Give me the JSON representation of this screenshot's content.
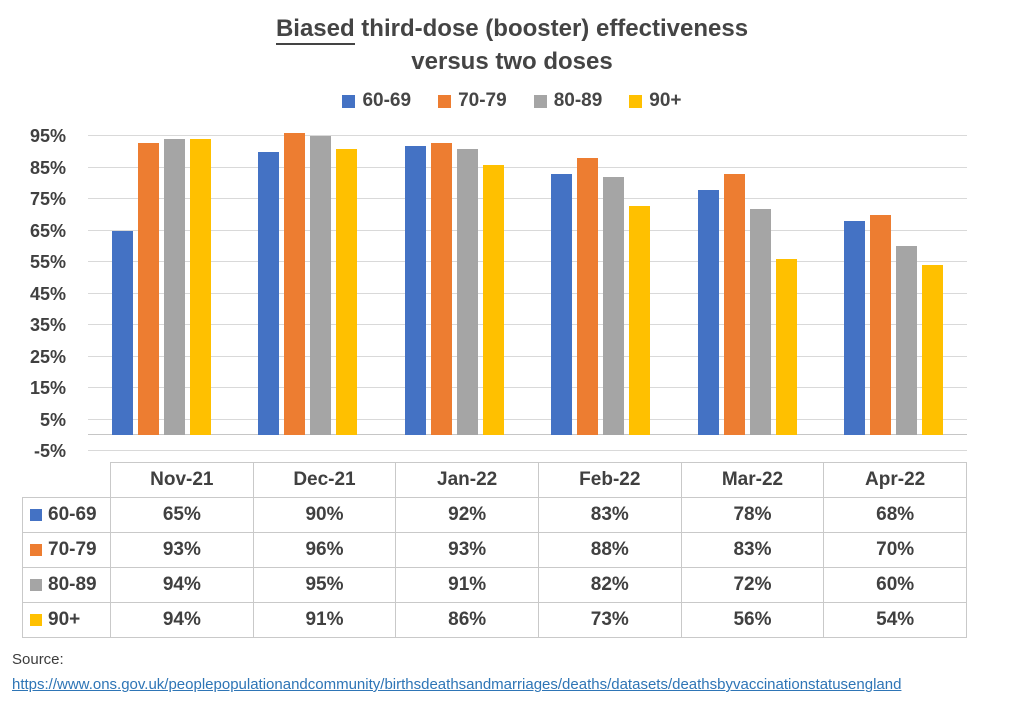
{
  "title": {
    "emphasized": "Biased",
    "line1_rest": " third-dose (booster) effectiveness",
    "line2": "versus two doses"
  },
  "colors": {
    "blue": "#4472C4",
    "orange": "#ED7D31",
    "gray": "#A5A5A5",
    "yellow": "#FFC000",
    "gridline": "#D9D9D9",
    "text": "#404040",
    "link": "#2E75B6"
  },
  "chart_data": {
    "type": "bar",
    "title": "Biased third-dose (booster) effectiveness versus two doses",
    "categories": [
      "Nov-21",
      "Dec-21",
      "Jan-22",
      "Feb-22",
      "Mar-22",
      "Apr-22"
    ],
    "series": [
      {
        "name": "60-69",
        "color": "#4472C4",
        "values": [
          65,
          90,
          92,
          83,
          78,
          68
        ]
      },
      {
        "name": "70-79",
        "color": "#ED7D31",
        "values": [
          93,
          96,
          93,
          88,
          83,
          70
        ]
      },
      {
        "name": "80-89",
        "color": "#A5A5A5",
        "values": [
          94,
          95,
          91,
          82,
          72,
          60
        ]
      },
      {
        "name": "90+",
        "color": "#FFC000",
        "values": [
          94,
          91,
          86,
          73,
          56,
          54
        ]
      }
    ],
    "yticks": [
      95,
      85,
      75,
      65,
      55,
      45,
      35,
      25,
      15,
      5,
      -5
    ],
    "ytick_labels": [
      "95%",
      "85%",
      "75%",
      "65%",
      "55%",
      "45%",
      "35%",
      "25%",
      "15%",
      "5%",
      "-5%"
    ],
    "ylim": [
      -5,
      97
    ],
    "grid": true,
    "legend_position": "top",
    "xlabel": "",
    "ylabel": ""
  },
  "table": {
    "corner": "",
    "columns": [
      "Nov-21",
      "Dec-21",
      "Jan-22",
      "Feb-22",
      "Mar-22",
      "Apr-22"
    ],
    "rows": [
      {
        "label": "60-69",
        "color": "#4472C4",
        "values": [
          "65%",
          "90%",
          "92%",
          "83%",
          "78%",
          "68%"
        ]
      },
      {
        "label": "70-79",
        "color": "#ED7D31",
        "values": [
          "93%",
          "96%",
          "93%",
          "88%",
          "83%",
          "70%"
        ]
      },
      {
        "label": "80-89",
        "color": "#A5A5A5",
        "values": [
          "94%",
          "95%",
          "91%",
          "82%",
          "72%",
          "60%"
        ]
      },
      {
        "label": "90+",
        "color": "#FFC000",
        "values": [
          "94%",
          "91%",
          "86%",
          "73%",
          "56%",
          "54%"
        ]
      }
    ]
  },
  "source": {
    "label": "Source:",
    "url": "https://www.ons.gov.uk/peoplepopulationandcommunity/birthsdeathsandmarriages/deaths/datasets/deathsbyvaccinationstatusengland"
  }
}
